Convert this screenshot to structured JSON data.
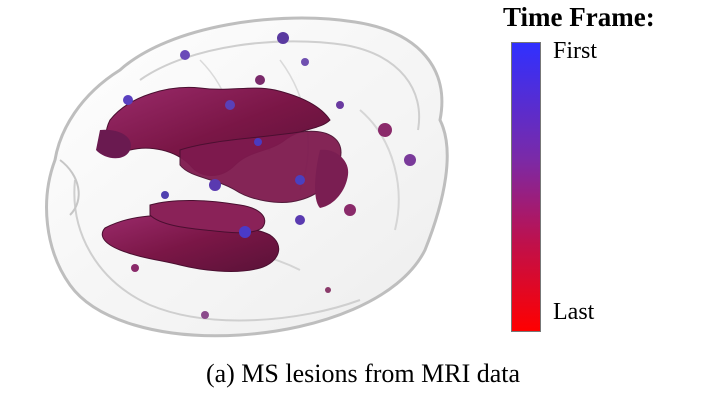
{
  "legend": {
    "title": "Time Frame:",
    "first_label": "First",
    "last_label": "Last",
    "gradient_colors": [
      "#3030ff",
      "#7a2aa8",
      "#c0104a",
      "#ff0000"
    ]
  },
  "caption": "(a) MS lesions from MRI data",
  "colors": {
    "lesion_main": "#7a1646",
    "lesion_blue": "#5a3ab0",
    "brain_outline": "#bdbdbd"
  }
}
